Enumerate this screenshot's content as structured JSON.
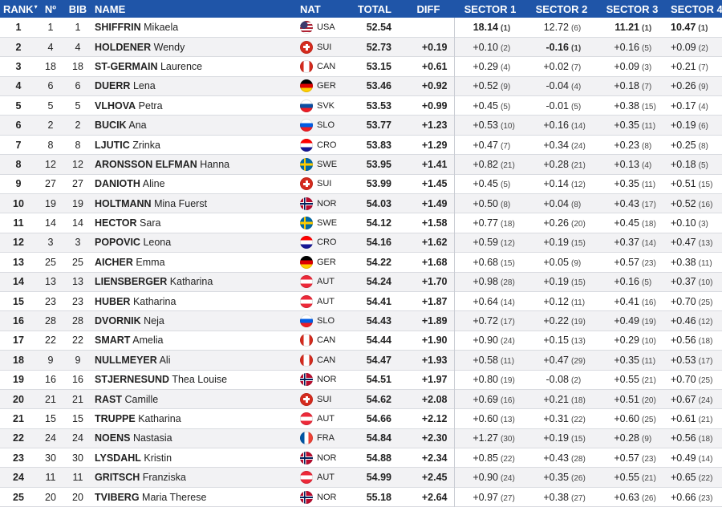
{
  "header": {
    "rank": "RANK",
    "rank_sort": "▾",
    "no": "Nº",
    "bib": "BIB",
    "name": "NAME",
    "nat": "NAT",
    "total": "TOTAL",
    "diff": "DIFF",
    "sector1": "SECTOR 1",
    "sector2": "SECTOR 2",
    "sector3": "SECTOR 3",
    "sector4": "SECTOR 4"
  },
  "colors": {
    "header_bg": "#1f55a8",
    "header_text": "#ffffff",
    "row_alt": "#f2f2f4"
  },
  "flag_icons": {
    "USA": "usa-flag-icon",
    "SUI": "switzerland-flag-icon",
    "CAN": "canada-flag-icon",
    "GER": "germany-flag-icon",
    "SVK": "slovakia-flag-icon",
    "SLO": "slovenia-flag-icon",
    "CRO": "croatia-flag-icon",
    "SWE": "sweden-flag-icon",
    "NOR": "norway-flag-icon",
    "AUT": "austria-flag-icon",
    "FRA": "france-flag-icon"
  },
  "rows": [
    {
      "rank": "1",
      "no": "1",
      "bib": "1",
      "surname": "SHIFFRIN",
      "first": "Mikaela",
      "nat": "USA",
      "total": "52.54",
      "diff": "",
      "s1": "18.14",
      "s1p": "(1)",
      "s2": "12.72",
      "s2p": "(6)",
      "s3": "11.21",
      "s3p": "(1)",
      "s4": "10.47",
      "s4p": "(1)"
    },
    {
      "rank": "2",
      "no": "4",
      "bib": "4",
      "surname": "HOLDENER",
      "first": "Wendy",
      "nat": "SUI",
      "total": "52.73",
      "diff": "+0.19",
      "s1": "+0.10",
      "s1p": "(2)",
      "s2": "-0.16",
      "s2p": "(1)",
      "s3": "+0.16",
      "s3p": "(5)",
      "s4": "+0.09",
      "s4p": "(2)"
    },
    {
      "rank": "3",
      "no": "18",
      "bib": "18",
      "surname": "ST-GERMAIN",
      "first": "Laurence",
      "nat": "CAN",
      "total": "53.15",
      "diff": "+0.61",
      "s1": "+0.29",
      "s1p": "(4)",
      "s2": "+0.02",
      "s2p": "(7)",
      "s3": "+0.09",
      "s3p": "(3)",
      "s4": "+0.21",
      "s4p": "(7)"
    },
    {
      "rank": "4",
      "no": "6",
      "bib": "6",
      "surname": "DUERR",
      "first": "Lena",
      "nat": "GER",
      "total": "53.46",
      "diff": "+0.92",
      "s1": "+0.52",
      "s1p": "(9)",
      "s2": "-0.04",
      "s2p": "(4)",
      "s3": "+0.18",
      "s3p": "(7)",
      "s4": "+0.26",
      "s4p": "(9)"
    },
    {
      "rank": "5",
      "no": "5",
      "bib": "5",
      "surname": "VLHOVA",
      "first": "Petra",
      "nat": "SVK",
      "total": "53.53",
      "diff": "+0.99",
      "s1": "+0.45",
      "s1p": "(5)",
      "s2": "-0.01",
      "s2p": "(5)",
      "s3": "+0.38",
      "s3p": "(15)",
      "s4": "+0.17",
      "s4p": "(4)"
    },
    {
      "rank": "6",
      "no": "2",
      "bib": "2",
      "surname": "BUCIK",
      "first": "Ana",
      "nat": "SLO",
      "total": "53.77",
      "diff": "+1.23",
      "s1": "+0.53",
      "s1p": "(10)",
      "s2": "+0.16",
      "s2p": "(14)",
      "s3": "+0.35",
      "s3p": "(11)",
      "s4": "+0.19",
      "s4p": "(6)"
    },
    {
      "rank": "7",
      "no": "8",
      "bib": "8",
      "surname": "LJUTIC",
      "first": "Zrinka",
      "nat": "CRO",
      "total": "53.83",
      "diff": "+1.29",
      "s1": "+0.47",
      "s1p": "(7)",
      "s2": "+0.34",
      "s2p": "(24)",
      "s3": "+0.23",
      "s3p": "(8)",
      "s4": "+0.25",
      "s4p": "(8)"
    },
    {
      "rank": "8",
      "no": "12",
      "bib": "12",
      "surname": "ARONSSON ELFMAN",
      "first": "Hanna",
      "nat": "SWE",
      "total": "53.95",
      "diff": "+1.41",
      "s1": "+0.82",
      "s1p": "(21)",
      "s2": "+0.28",
      "s2p": "(21)",
      "s3": "+0.13",
      "s3p": "(4)",
      "s4": "+0.18",
      "s4p": "(5)"
    },
    {
      "rank": "9",
      "no": "27",
      "bib": "27",
      "surname": "DANIOTH",
      "first": "Aline",
      "nat": "SUI",
      "total": "53.99",
      "diff": "+1.45",
      "s1": "+0.45",
      "s1p": "(5)",
      "s2": "+0.14",
      "s2p": "(12)",
      "s3": "+0.35",
      "s3p": "(11)",
      "s4": "+0.51",
      "s4p": "(15)"
    },
    {
      "rank": "10",
      "no": "19",
      "bib": "19",
      "surname": "HOLTMANN",
      "first": "Mina Fuerst",
      "nat": "NOR",
      "total": "54.03",
      "diff": "+1.49",
      "s1": "+0.50",
      "s1p": "(8)",
      "s2": "+0.04",
      "s2p": "(8)",
      "s3": "+0.43",
      "s3p": "(17)",
      "s4": "+0.52",
      "s4p": "(16)"
    },
    {
      "rank": "11",
      "no": "14",
      "bib": "14",
      "surname": "HECTOR",
      "first": "Sara",
      "nat": "SWE",
      "total": "54.12",
      "diff": "+1.58",
      "s1": "+0.77",
      "s1p": "(18)",
      "s2": "+0.26",
      "s2p": "(20)",
      "s3": "+0.45",
      "s3p": "(18)",
      "s4": "+0.10",
      "s4p": "(3)"
    },
    {
      "rank": "12",
      "no": "3",
      "bib": "3",
      "surname": "POPOVIC",
      "first": "Leona",
      "nat": "CRO",
      "total": "54.16",
      "diff": "+1.62",
      "s1": "+0.59",
      "s1p": "(12)",
      "s2": "+0.19",
      "s2p": "(15)",
      "s3": "+0.37",
      "s3p": "(14)",
      "s4": "+0.47",
      "s4p": "(13)"
    },
    {
      "rank": "13",
      "no": "25",
      "bib": "25",
      "surname": "AICHER",
      "first": "Emma",
      "nat": "GER",
      "total": "54.22",
      "diff": "+1.68",
      "s1": "+0.68",
      "s1p": "(15)",
      "s2": "+0.05",
      "s2p": "(9)",
      "s3": "+0.57",
      "s3p": "(23)",
      "s4": "+0.38",
      "s4p": "(11)"
    },
    {
      "rank": "14",
      "no": "13",
      "bib": "13",
      "surname": "LIENSBERGER",
      "first": "Katharina",
      "nat": "AUT",
      "total": "54.24",
      "diff": "+1.70",
      "s1": "+0.98",
      "s1p": "(28)",
      "s2": "+0.19",
      "s2p": "(15)",
      "s3": "+0.16",
      "s3p": "(5)",
      "s4": "+0.37",
      "s4p": "(10)"
    },
    {
      "rank": "15",
      "no": "23",
      "bib": "23",
      "surname": "HUBER",
      "first": "Katharina",
      "nat": "AUT",
      "total": "54.41",
      "diff": "+1.87",
      "s1": "+0.64",
      "s1p": "(14)",
      "s2": "+0.12",
      "s2p": "(11)",
      "s3": "+0.41",
      "s3p": "(16)",
      "s4": "+0.70",
      "s4p": "(25)"
    },
    {
      "rank": "16",
      "no": "28",
      "bib": "28",
      "surname": "DVORNIK",
      "first": "Neja",
      "nat": "SLO",
      "total": "54.43",
      "diff": "+1.89",
      "s1": "+0.72",
      "s1p": "(17)",
      "s2": "+0.22",
      "s2p": "(19)",
      "s3": "+0.49",
      "s3p": "(19)",
      "s4": "+0.46",
      "s4p": "(12)"
    },
    {
      "rank": "17",
      "no": "22",
      "bib": "22",
      "surname": "SMART",
      "first": "Amelia",
      "nat": "CAN",
      "total": "54.44",
      "diff": "+1.90",
      "s1": "+0.90",
      "s1p": "(24)",
      "s2": "+0.15",
      "s2p": "(13)",
      "s3": "+0.29",
      "s3p": "(10)",
      "s4": "+0.56",
      "s4p": "(18)"
    },
    {
      "rank": "18",
      "no": "9",
      "bib": "9",
      "surname": "NULLMEYER",
      "first": "Ali",
      "nat": "CAN",
      "total": "54.47",
      "diff": "+1.93",
      "s1": "+0.58",
      "s1p": "(11)",
      "s2": "+0.47",
      "s2p": "(29)",
      "s3": "+0.35",
      "s3p": "(11)",
      "s4": "+0.53",
      "s4p": "(17)"
    },
    {
      "rank": "19",
      "no": "16",
      "bib": "16",
      "surname": "STJERNESUND",
      "first": "Thea Louise",
      "nat": "NOR",
      "total": "54.51",
      "diff": "+1.97",
      "s1": "+0.80",
      "s1p": "(19)",
      "s2": "-0.08",
      "s2p": "(2)",
      "s3": "+0.55",
      "s3p": "(21)",
      "s4": "+0.70",
      "s4p": "(25)"
    },
    {
      "rank": "20",
      "no": "21",
      "bib": "21",
      "surname": "RAST",
      "first": "Camille",
      "nat": "SUI",
      "total": "54.62",
      "diff": "+2.08",
      "s1": "+0.69",
      "s1p": "(16)",
      "s2": "+0.21",
      "s2p": "(18)",
      "s3": "+0.51",
      "s3p": "(20)",
      "s4": "+0.67",
      "s4p": "(24)"
    },
    {
      "rank": "21",
      "no": "15",
      "bib": "15",
      "surname": "TRUPPE",
      "first": "Katharina",
      "nat": "AUT",
      "total": "54.66",
      "diff": "+2.12",
      "s1": "+0.60",
      "s1p": "(13)",
      "s2": "+0.31",
      "s2p": "(22)",
      "s3": "+0.60",
      "s3p": "(25)",
      "s4": "+0.61",
      "s4p": "(21)"
    },
    {
      "rank": "22",
      "no": "24",
      "bib": "24",
      "surname": "NOENS",
      "first": "Nastasia",
      "nat": "FRA",
      "total": "54.84",
      "diff": "+2.30",
      "s1": "+1.27",
      "s1p": "(30)",
      "s2": "+0.19",
      "s2p": "(15)",
      "s3": "+0.28",
      "s3p": "(9)",
      "s4": "+0.56",
      "s4p": "(18)"
    },
    {
      "rank": "23",
      "no": "30",
      "bib": "30",
      "surname": "LYSDAHL",
      "first": "Kristin",
      "nat": "NOR",
      "total": "54.88",
      "diff": "+2.34",
      "s1": "+0.85",
      "s1p": "(22)",
      "s2": "+0.43",
      "s2p": "(28)",
      "s3": "+0.57",
      "s3p": "(23)",
      "s4": "+0.49",
      "s4p": "(14)"
    },
    {
      "rank": "24",
      "no": "11",
      "bib": "11",
      "surname": "GRITSCH",
      "first": "Franziska",
      "nat": "AUT",
      "total": "54.99",
      "diff": "+2.45",
      "s1": "+0.90",
      "s1p": "(24)",
      "s2": "+0.35",
      "s2p": "(26)",
      "s3": "+0.55",
      "s3p": "(21)",
      "s4": "+0.65",
      "s4p": "(22)"
    },
    {
      "rank": "25",
      "no": "20",
      "bib": "20",
      "surname": "TVIBERG",
      "first": "Maria Therese",
      "nat": "NOR",
      "total": "55.18",
      "diff": "+2.64",
      "s1": "+0.97",
      "s1p": "(27)",
      "s2": "+0.38",
      "s2p": "(27)",
      "s3": "+0.63",
      "s3p": "(26)",
      "s4": "+0.66",
      "s4p": "(23)"
    }
  ]
}
